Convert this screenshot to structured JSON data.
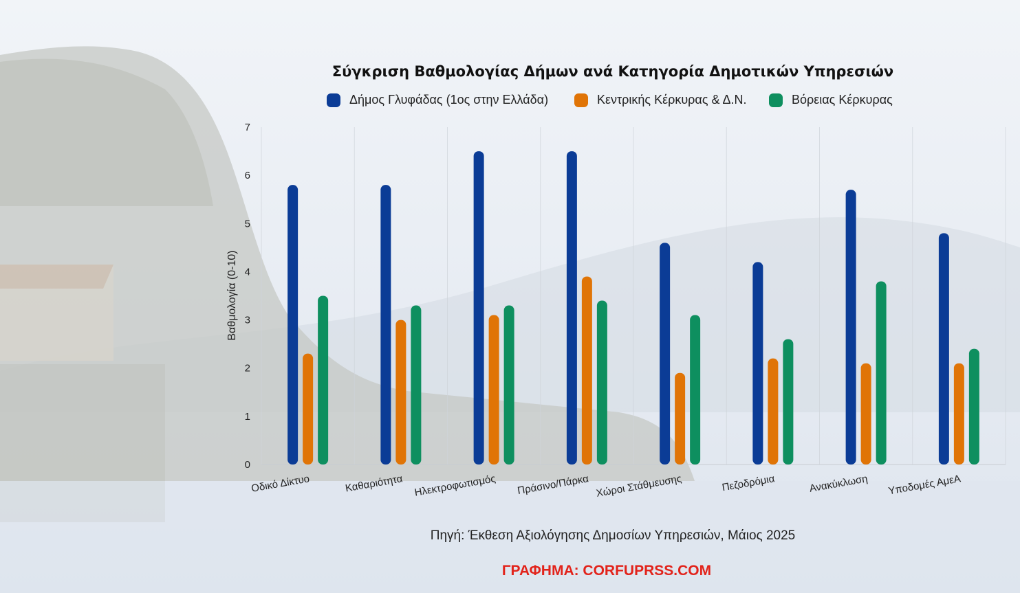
{
  "chart_data": {
    "type": "bar",
    "title": "Σύγκριση Βαθμολογίας Δήμων ανά Κατηγορία Δημοτικών Υπηρεσιών",
    "ylabel": "Βαθμολογία (0-10)",
    "xlabel": "",
    "ylim": [
      0,
      7
    ],
    "yticks": [
      "0",
      "1",
      "2",
      "3",
      "4",
      "5",
      "6",
      "7"
    ],
    "grid": "vertical",
    "legend_position": "top",
    "categories": [
      "Οδικό Δίκτυο",
      "Καθαριότητα",
      "Ηλεκτροφωτισμός",
      "Πράσινο/Πάρκα",
      "Χώροι Στάθμευσης",
      "Πεζοδρόμια",
      "Ανακύκλωση",
      "Υποδομές ΑμεΑ"
    ],
    "series": [
      {
        "name": "Δήμος Γλυφάδας (1ος στην Ελλάδα)",
        "color": "#0b3c96",
        "values": [
          5.8,
          5.8,
          6.5,
          6.5,
          4.6,
          4.2,
          5.7,
          4.8
        ]
      },
      {
        "name": "Κεντρικής Κέρκυρας & Δ.Ν.",
        "color": "#e07406",
        "values": [
          2.3,
          3.0,
          3.1,
          3.9,
          1.9,
          2.2,
          2.1,
          2.1
        ]
      },
      {
        "name": "Βόρειας Κέρκυρας",
        "color": "#0e8f5f",
        "values": [
          3.5,
          3.3,
          3.3,
          3.4,
          3.1,
          2.6,
          3.8,
          2.4
        ]
      }
    ]
  },
  "source_note": "Πηγή: Έκθεση Αξιολόγησης Δημοσίων Υπηρεσιών, Μάιος 2025",
  "credit": "ΓΡΑΦΗΜΑ: CORFUPRSS.COM"
}
